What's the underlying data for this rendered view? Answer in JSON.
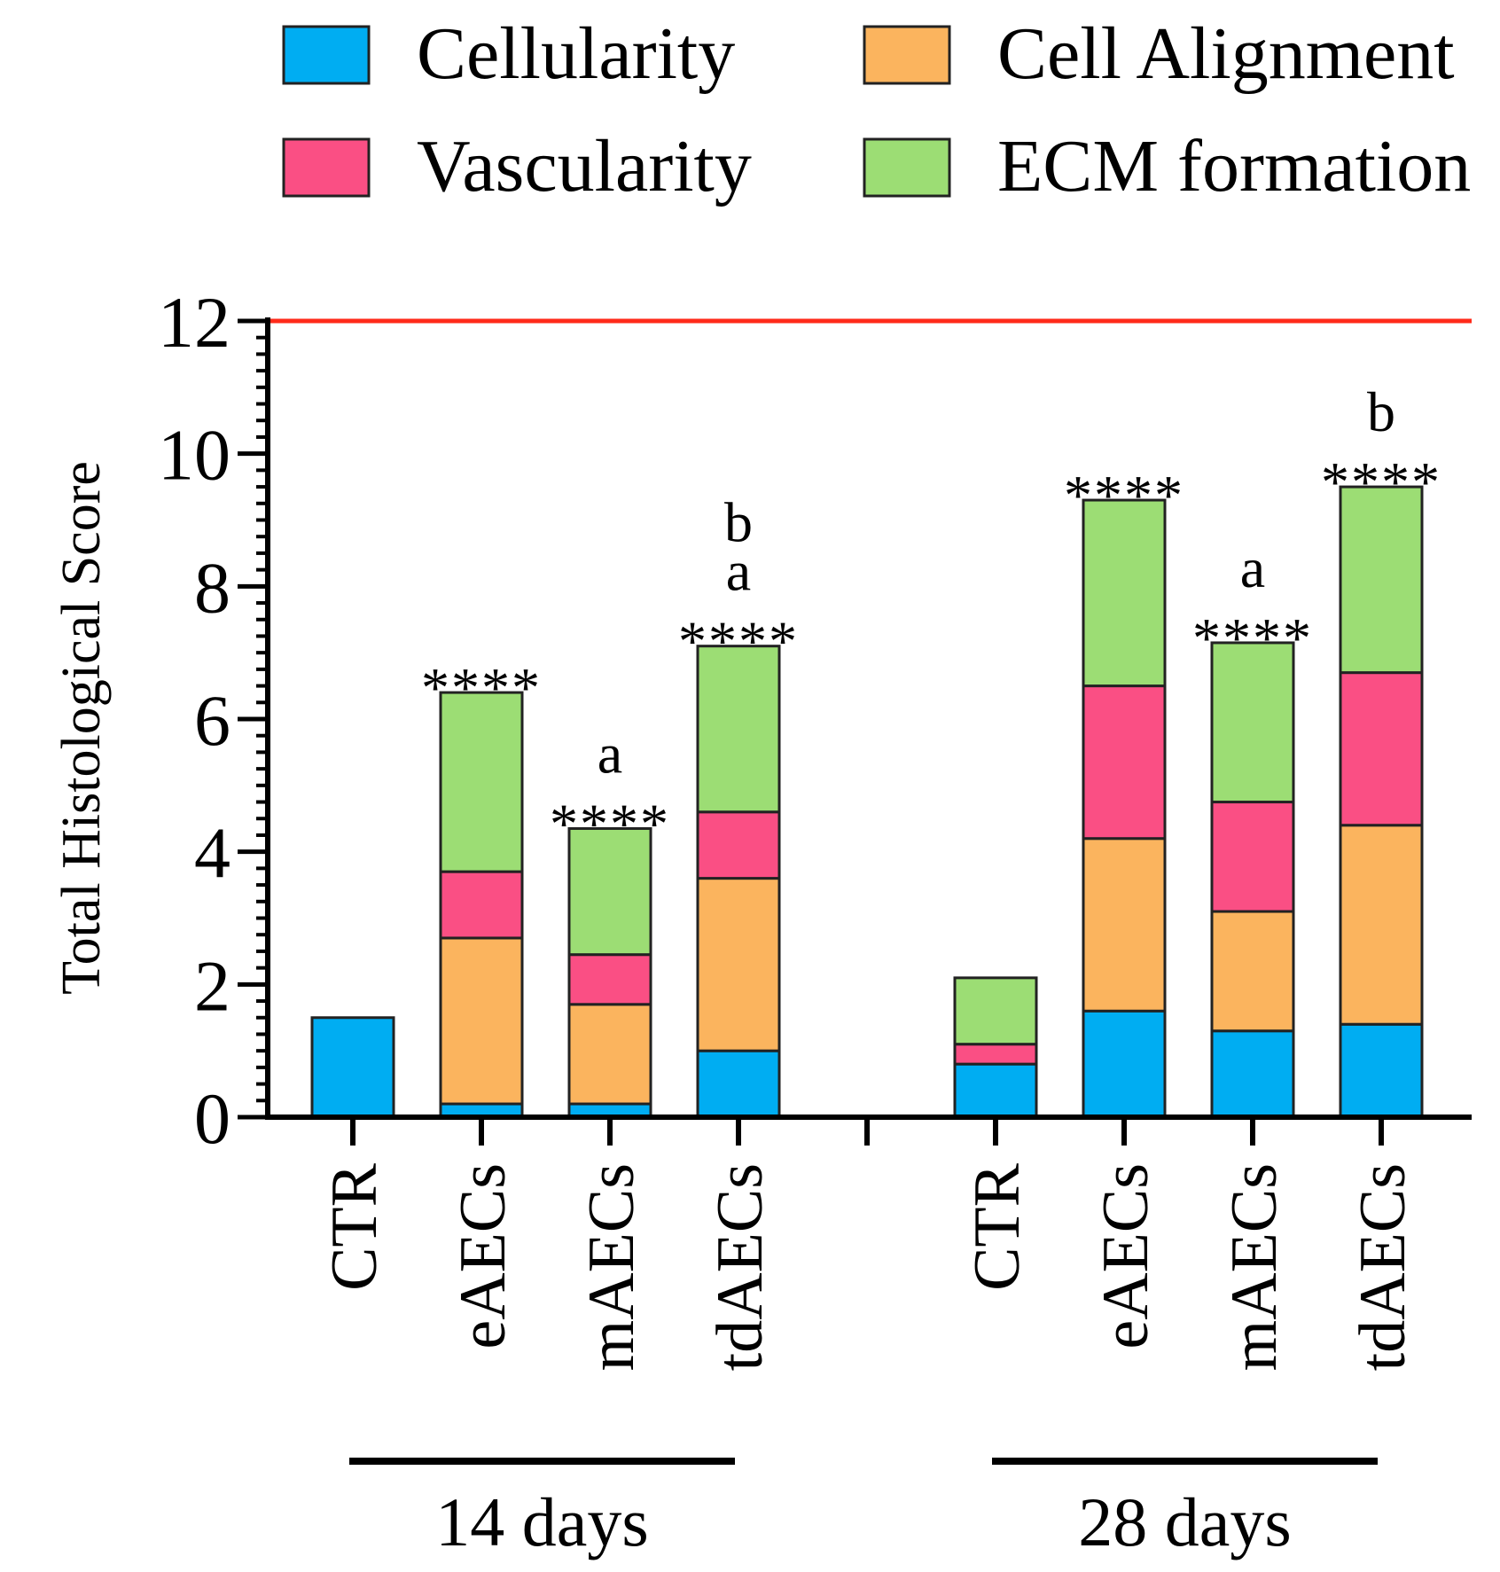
{
  "chart_data": {
    "type": "bar",
    "stacked": true,
    "title": "",
    "xlabel": "",
    "ylabel": "Total Histological Score",
    "ylim": [
      0,
      12
    ],
    "yticks": [
      0,
      2,
      4,
      6,
      8,
      10,
      12
    ],
    "minor_tick_step": 0.25,
    "reference_line": {
      "y": 12,
      "color": "#ff2a1a"
    },
    "legend_position": "top",
    "categories": [
      "CTR",
      "eAECs",
      "mAECs",
      "tdAECs",
      "CTR",
      "eAECs",
      "mAECs",
      "tdAECs"
    ],
    "groups": [
      {
        "label": "14 days",
        "categories": [
          0,
          1,
          2,
          3
        ]
      },
      {
        "label": "28 days",
        "categories": [
          4,
          5,
          6,
          7
        ]
      }
    ],
    "series": [
      {
        "name": "Cellularity",
        "color": "#00adf2",
        "values": [
          1.5,
          0.2,
          0.2,
          1.0,
          0.8,
          1.6,
          1.3,
          1.4
        ]
      },
      {
        "name": "Cell Alignment",
        "color": "#fbb45e",
        "values": [
          0,
          2.5,
          1.5,
          2.6,
          0,
          2.6,
          1.8,
          3.0
        ]
      },
      {
        "name": "Vascularity",
        "color": "#fa4f84",
        "values": [
          0,
          1.0,
          0.75,
          1.0,
          0.3,
          2.3,
          1.65,
          2.3
        ]
      },
      {
        "name": "ECM formation",
        "color": "#9cdd74",
        "values": [
          0,
          2.7,
          1.9,
          2.5,
          1.0,
          2.8,
          2.4,
          2.8
        ]
      }
    ],
    "annotations": [
      [],
      [
        "****"
      ],
      [
        "****",
        "a"
      ],
      [
        "****",
        "a",
        "b"
      ],
      [],
      [
        "****"
      ],
      [
        "****",
        "a"
      ],
      [
        "****",
        "b"
      ]
    ]
  }
}
